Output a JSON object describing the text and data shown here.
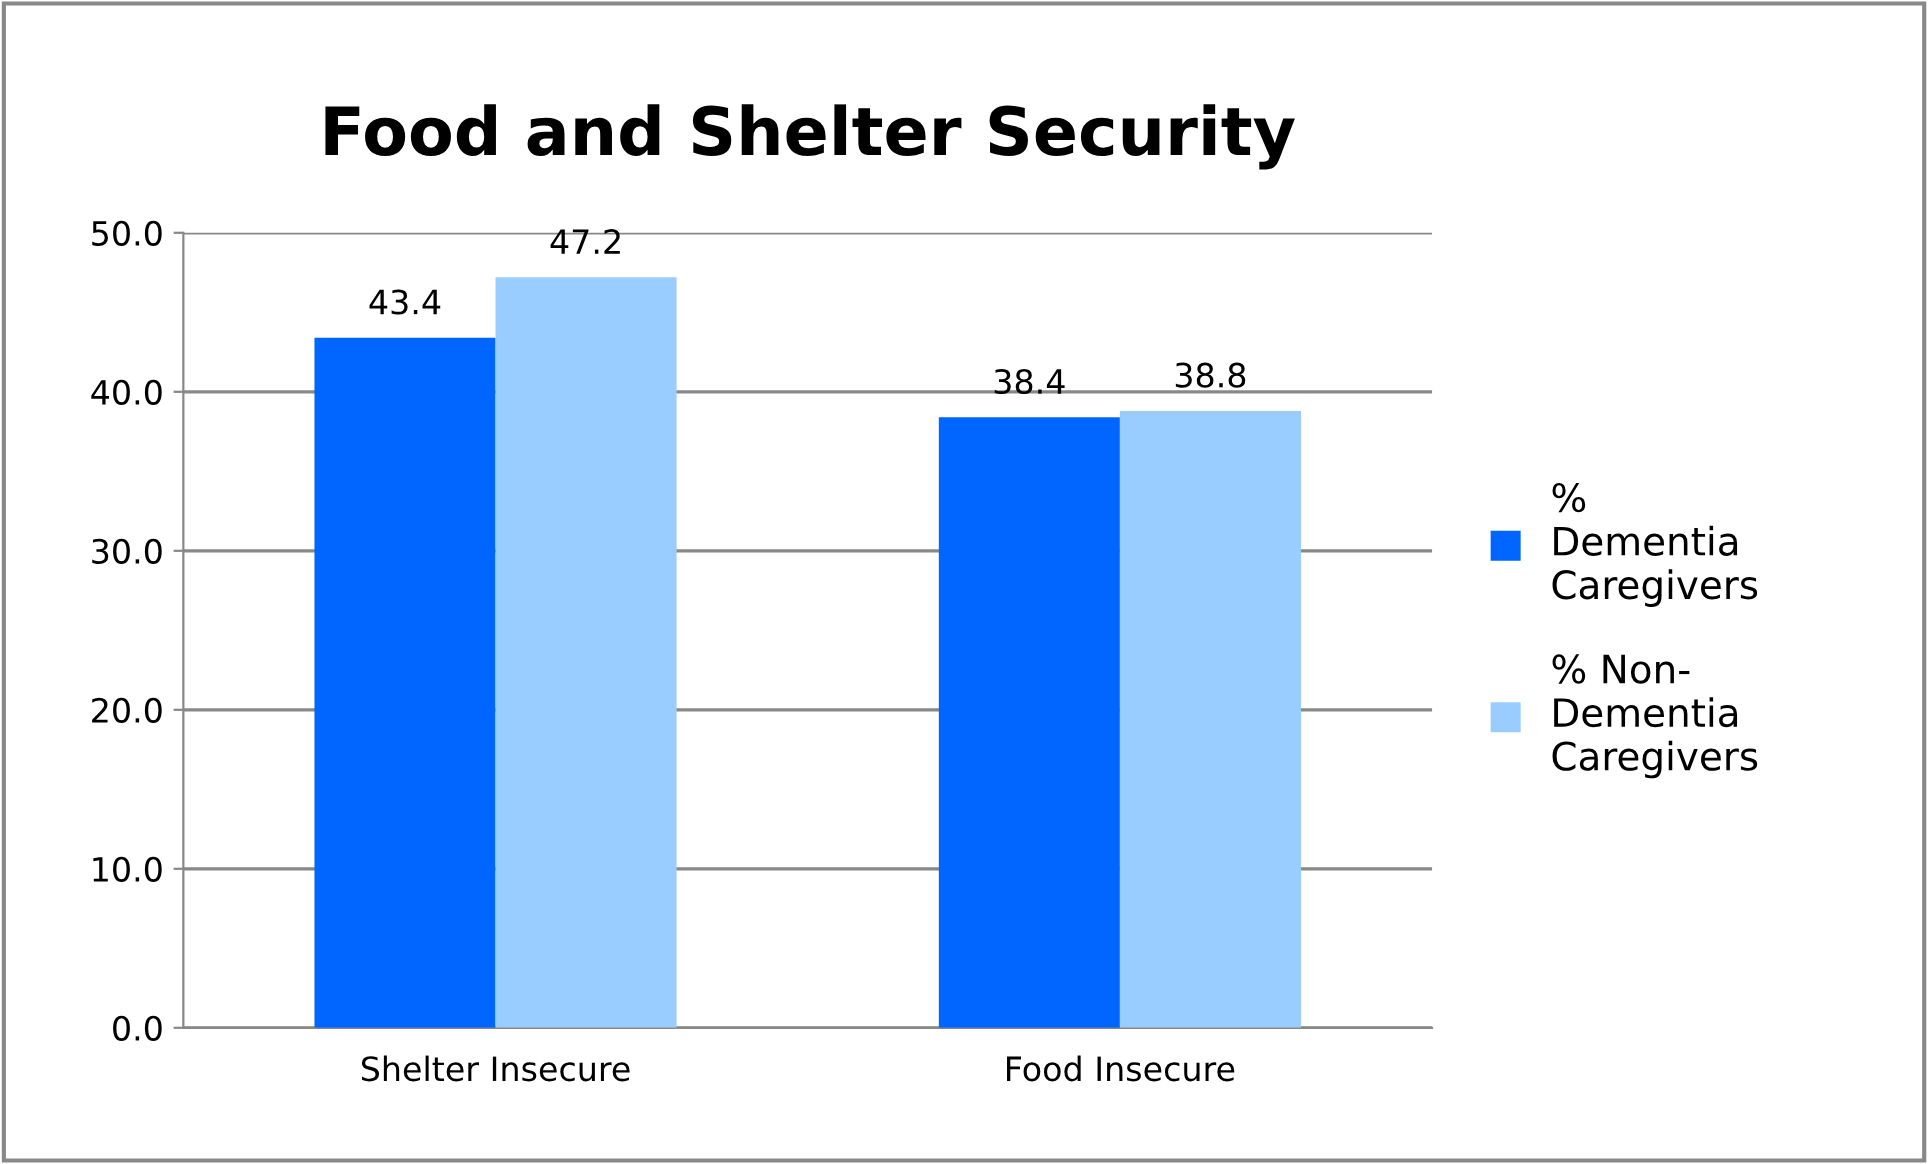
{
  "chart_data": {
    "type": "bar",
    "title": "Food and Shelter Security",
    "categories": [
      "Shelter Insecure",
      "Food Insecure"
    ],
    "series": [
      {
        "name": "%\nDementia\nCaregivers",
        "color": "#0066ff",
        "values": [
          43.4,
          38.4
        ]
      },
      {
        "name": "% Non-\nDementia\nCaregivers",
        "color": "#99ccff",
        "values": [
          47.2,
          38.8
        ]
      }
    ],
    "ylim": [
      0,
      50
    ],
    "yticks": [
      {
        "value": 0,
        "label": "0.0"
      },
      {
        "value": 10,
        "label": "10.0"
      },
      {
        "value": 20,
        "label": "20.0"
      },
      {
        "value": 30,
        "label": "30.0"
      },
      {
        "value": 40,
        "label": "40.0"
      },
      {
        "value": 50,
        "label": "50.0"
      }
    ],
    "grid": "y",
    "legend": "right",
    "data_labels": true
  }
}
